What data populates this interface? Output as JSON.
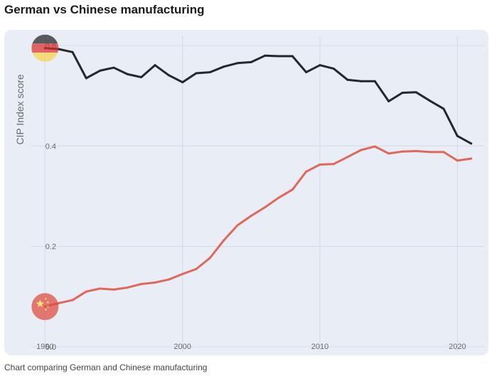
{
  "page": {
    "title": "German vs Chinese manufacturing",
    "caption": "Chart comparing German and Chinese manufacturing"
  },
  "chart_data": {
    "type": "line",
    "xlabel": "",
    "ylabel": "CIP Index score",
    "xlim": [
      1989,
      2022
    ],
    "ylim": [
      -0.01,
      0.62
    ],
    "xticks": [
      1990,
      2000,
      2010,
      2020
    ],
    "yticks": [
      0.0,
      0.2,
      0.4,
      0.6
    ],
    "ytick_labels": [
      "0.0",
      "0.2",
      "0.4",
      "0.6"
    ],
    "grid": true,
    "series": [
      {
        "color": "#24282e",
        "marker_icon": "germany-flag-icon",
        "x": [
          1990,
          1991,
          1992,
          1993,
          1994,
          1995,
          1996,
          1997,
          1998,
          1999,
          2000,
          2001,
          2002,
          2003,
          2004,
          2005,
          2006,
          2007,
          2008,
          2009,
          2010,
          2011,
          2012,
          2013,
          2014,
          2015,
          2016,
          2017,
          2018,
          2019,
          2020,
          2021
        ],
        "y": [
          0.595,
          0.593,
          0.587,
          0.535,
          0.55,
          0.556,
          0.543,
          0.537,
          0.561,
          0.541,
          0.527,
          0.545,
          0.547,
          0.558,
          0.565,
          0.567,
          0.58,
          0.579,
          0.579,
          0.547,
          0.561,
          0.554,
          0.532,
          0.529,
          0.529,
          0.489,
          0.506,
          0.507,
          0.49,
          0.474,
          0.42,
          0.405
        ]
      },
      {
        "color": "#e0685a",
        "marker_icon": "china-flag-icon",
        "x": [
          1990,
          1991,
          1992,
          1993,
          1994,
          1995,
          1996,
          1997,
          1998,
          1999,
          2000,
          2001,
          2002,
          2003,
          2004,
          2005,
          2006,
          2007,
          2008,
          2009,
          2010,
          2011,
          2012,
          2013,
          2014,
          2015,
          2016,
          2017,
          2018,
          2019,
          2020,
          2021
        ],
        "y": [
          0.08,
          0.087,
          0.093,
          0.11,
          0.116,
          0.114,
          0.118,
          0.125,
          0.128,
          0.134,
          0.145,
          0.155,
          0.177,
          0.212,
          0.242,
          0.261,
          0.278,
          0.297,
          0.313,
          0.349,
          0.363,
          0.364,
          0.378,
          0.392,
          0.399,
          0.385,
          0.389,
          0.39,
          0.388,
          0.388,
          0.371,
          0.375
        ]
      }
    ]
  }
}
